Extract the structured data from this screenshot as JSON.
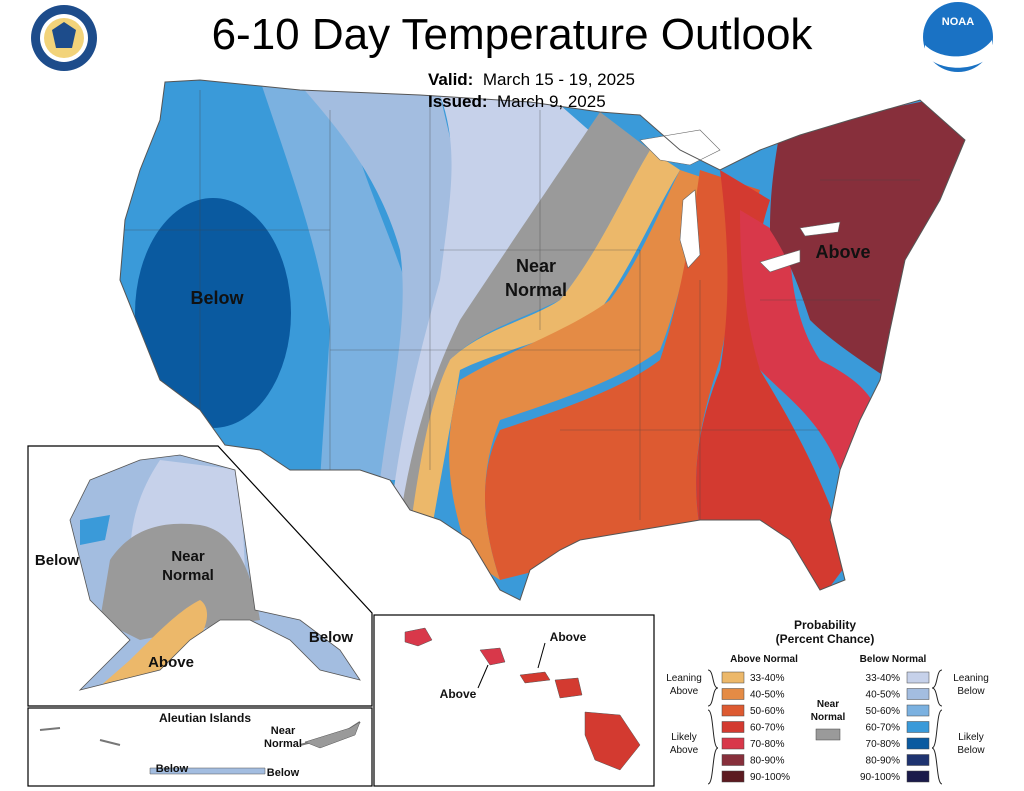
{
  "header": {
    "title": "6-10 Day Temperature Outlook",
    "valid_label": "Valid:",
    "valid_value": "March 15 - 19, 2025",
    "issued_label": "Issued:",
    "issued_value": "March 9, 2025",
    "left_seal_icon": "department-of-commerce-seal-icon",
    "right_logo_icon": "noaa-logo-icon",
    "noaa_text": "NOAA"
  },
  "map_labels": {
    "conus_below": "Below",
    "conus_near_normal_1": "Near",
    "conus_near_normal_2": "Normal",
    "conus_above": "Above",
    "alaska_below_west": "Below",
    "alaska_near_1": "Near",
    "alaska_near_2": "Normal",
    "alaska_above": "Above",
    "alaska_below_se": "Below",
    "aleutian_title": "Aleutian Islands",
    "aleutian_near_1": "Near",
    "aleutian_near_2": "Normal",
    "aleutian_below_1": "Below",
    "aleutian_below_2": "Below",
    "hawaii_above_1": "Above",
    "hawaii_above_2": "Above"
  },
  "legend": {
    "title_1": "Probability",
    "title_2": "(Percent Chance)",
    "above_head": "Above Normal",
    "below_head": "Below Normal",
    "near_1": "Near",
    "near_2": "Normal",
    "leaning_above_1": "Leaning",
    "leaning_above_2": "Above",
    "likely_above_1": "Likely",
    "likely_above_2": "Above",
    "leaning_below_1": "Leaning",
    "leaning_below_2": "Below",
    "likely_below_1": "Likely",
    "likely_below_2": "Below",
    "above_bins": [
      {
        "label": "33-40%",
        "color": "#ecb86a"
      },
      {
        "label": "40-50%",
        "color": "#e48b45"
      },
      {
        "label": "50-60%",
        "color": "#dd5a31"
      },
      {
        "label": "60-70%",
        "color": "#d33a30"
      },
      {
        "label": "70-80%",
        "color": "#d8384a"
      },
      {
        "label": "80-90%",
        "color": "#872f3b"
      },
      {
        "label": "90-100%",
        "color": "#5c1a20"
      }
    ],
    "below_bins": [
      {
        "label": "33-40%",
        "color": "#c6d1ea"
      },
      {
        "label": "40-50%",
        "color": "#a3bde0"
      },
      {
        "label": "50-60%",
        "color": "#7bb1e0"
      },
      {
        "label": "60-70%",
        "color": "#3a9ad9"
      },
      {
        "label": "70-80%",
        "color": "#0a5aa0"
      },
      {
        "label": "80-90%",
        "color": "#1e3370"
      },
      {
        "label": "90-100%",
        "color": "#1a1a4a"
      }
    ],
    "near_color": "#9a9a9a"
  }
}
